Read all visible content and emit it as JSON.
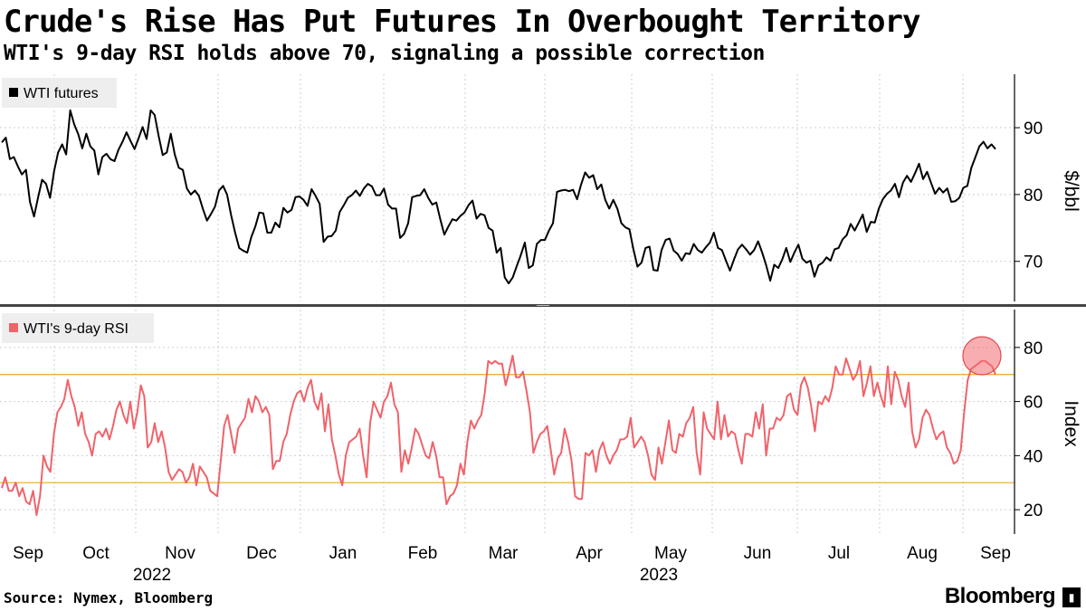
{
  "title": "Crude's Rise Has Put Futures In Overbought Territory",
  "subtitle": "WTI's 9-day RSI holds above 70, signaling a possible correction",
  "source": "Source: Nymex, Bloomberg",
  "brand": "Bloomberg",
  "brand_icon": "terminal-icon",
  "chart_data": [
    {
      "type": "line",
      "series": [
        {
          "name": "WTI futures",
          "color": "#000000",
          "values": [
            87.8,
            88.5,
            85.3,
            85.6,
            84.2,
            83.0,
            83.7,
            78.9,
            76.7,
            79.5,
            82.2,
            81.6,
            79.5,
            83.5,
            86.3,
            87.5,
            86.0,
            92.6,
            90.5,
            89.0,
            86.9,
            89.1,
            87.2,
            86.6,
            83.0,
            85.6,
            86.1,
            85.3,
            85.0,
            86.7,
            87.9,
            89.3,
            88.0,
            86.8,
            88.4,
            90.1,
            88.3,
            92.6,
            91.9,
            88.7,
            85.9,
            86.3,
            89.1,
            86.0,
            84.0,
            83.7,
            80.9,
            80.0,
            80.6,
            79.8,
            77.8,
            76.1,
            77.1,
            78.2,
            80.6,
            81.3,
            80.0,
            76.9,
            74.3,
            72.0,
            71.6,
            71.3,
            73.6,
            75.2,
            77.3,
            77.2,
            74.3,
            74.3,
            75.8,
            75.1,
            78.0,
            77.3,
            77.7,
            79.6,
            79.7,
            79.2,
            78.3,
            80.8,
            79.8,
            78.6,
            72.9,
            73.7,
            73.8,
            74.6,
            77.4,
            78.4,
            79.5,
            79.9,
            80.6,
            79.8,
            80.9,
            81.6,
            81.2,
            79.9,
            79.9,
            80.9,
            78.5,
            77.9,
            77.9,
            73.5,
            74.1,
            75.7,
            79.6,
            79.8,
            79.9,
            80.8,
            79.5,
            78.5,
            78.8,
            76.3,
            74.0,
            75.2,
            76.3,
            76.1,
            76.8,
            77.3,
            78.4,
            79.1,
            76.4,
            77.1,
            76.9,
            75.0,
            74.6,
            71.3,
            72.0,
            67.6,
            66.7,
            67.6,
            69.3,
            70.9,
            72.8,
            69.0,
            69.4,
            72.6,
            73.2,
            73.2,
            74.6,
            75.7,
            80.4,
            80.6,
            80.7,
            80.5,
            80.7,
            79.3,
            81.5,
            83.3,
            82.5,
            82.9,
            80.8,
            81.5,
            79.2,
            77.9,
            79.2,
            77.9,
            75.7,
            75.1,
            74.8,
            71.8,
            69.2,
            69.8,
            72.0,
            72.2,
            68.7,
            68.6,
            71.7,
            73.2,
            73.4,
            71.6,
            71.1,
            70.1,
            71.2,
            71.1,
            72.6,
            71.7,
            71.3,
            72.1,
            72.8,
            74.3,
            72.0,
            71.7,
            70.1,
            68.6,
            70.3,
            71.8,
            72.5,
            71.8,
            71.0,
            71.7,
            73.0,
            71.3,
            69.4,
            67.1,
            69.5,
            69.0,
            70.3,
            72.0,
            69.9,
            71.3,
            72.5,
            70.4,
            69.8,
            70.1,
            67.7,
            69.4,
            69.8,
            70.6,
            70.1,
            71.8,
            72.0,
            73.3,
            73.9,
            75.6,
            74.6,
            75.8,
            77.0,
            74.4,
            75.9,
            75.8,
            77.9,
            79.3,
            80.1,
            80.6,
            81.6,
            79.6,
            81.8,
            82.8,
            81.9,
            83.2,
            84.6,
            82.3,
            83.4,
            81.7,
            80.1,
            81.0,
            80.3,
            80.9,
            78.9,
            79.0,
            79.5,
            81.0,
            81.3,
            84.0,
            85.6,
            87.2,
            87.9,
            86.9,
            87.5,
            86.8
          ]
        }
      ],
      "ylabel": "$/bbl",
      "ylim": [
        64,
        98
      ],
      "yticks": [
        70,
        80,
        90
      ],
      "grid": true,
      "legend": "top-left"
    },
    {
      "type": "line",
      "series": [
        {
          "name": "WTI's 9-day RSI",
          "color": "#f0636a",
          "values": [
            28,
            32,
            27,
            27,
            30,
            25,
            28,
            23,
            22,
            27,
            18,
            25,
            40,
            36,
            34,
            48,
            56,
            58,
            61,
            68,
            62,
            58,
            51,
            56,
            48,
            45,
            40,
            48,
            49,
            47,
            50,
            46,
            51,
            57,
            60,
            55,
            52,
            60,
            50,
            56,
            66,
            62,
            43,
            45,
            52,
            45,
            49,
            43,
            34,
            31,
            33,
            35,
            34,
            30,
            32,
            37,
            29,
            36,
            34,
            32,
            27,
            26,
            25,
            38,
            51,
            55,
            48,
            41,
            50,
            52,
            54,
            61,
            56,
            62,
            60,
            56,
            58,
            55,
            35,
            38,
            38,
            45,
            48,
            55,
            60,
            63,
            64,
            60,
            65,
            68,
            60,
            57,
            63,
            49,
            59,
            46,
            40,
            33,
            29,
            40,
            45,
            46,
            47,
            50,
            40,
            32,
            52,
            60,
            57,
            54,
            60,
            62,
            67,
            59,
            56,
            34,
            42,
            37,
            43,
            50,
            48,
            44,
            40,
            39,
            45,
            40,
            32,
            32,
            22,
            25,
            26,
            29,
            37,
            33,
            45,
            53,
            50,
            53,
            55,
            63,
            75,
            74,
            75,
            74,
            74,
            66,
            71,
            77,
            69,
            69,
            71,
            64,
            56,
            41,
            45,
            48,
            49,
            51,
            42,
            33,
            39,
            41,
            50,
            45,
            38,
            25,
            24,
            24,
            41,
            40,
            42,
            34,
            42,
            45,
            40,
            37,
            40,
            42,
            46,
            46,
            47,
            54,
            43,
            45,
            47,
            45,
            40,
            33,
            31,
            43,
            37,
            45,
            53,
            42,
            41,
            48,
            47,
            52,
            54,
            58,
            41,
            33,
            56,
            50,
            48,
            46,
            60,
            46,
            55,
            47,
            49,
            48,
            42,
            37,
            48,
            48,
            47,
            56,
            50,
            59,
            40,
            50,
            50,
            54,
            53,
            55,
            62,
            63,
            57,
            55,
            66,
            69,
            65,
            58,
            49,
            60,
            59,
            62,
            60,
            65,
            73,
            70,
            70,
            76,
            72,
            68,
            70,
            75,
            62,
            67,
            73,
            62,
            67,
            62,
            58,
            73,
            59,
            71,
            68,
            62,
            58,
            67,
            49,
            43,
            46,
            54,
            57,
            55,
            50,
            46,
            48,
            49,
            43,
            41,
            37,
            38,
            42,
            56,
            68,
            72,
            73,
            74,
            75,
            75,
            74,
            73,
            70
          ]
        }
      ],
      "ylabel": "Index",
      "ylim": [
        11,
        94
      ],
      "yticks": [
        20,
        40,
        60,
        80
      ],
      "reference_lines": [
        70,
        30
      ],
      "grid": true,
      "legend": "top-left"
    }
  ],
  "x_axis": {
    "months": [
      "Sep",
      "Oct",
      "Nov",
      "Dec",
      "Jan",
      "Feb",
      "Mar",
      "Apr",
      "May",
      "Jun",
      "Jul",
      "Aug",
      "Sep"
    ],
    "years": [
      "2022",
      "2023"
    ]
  }
}
